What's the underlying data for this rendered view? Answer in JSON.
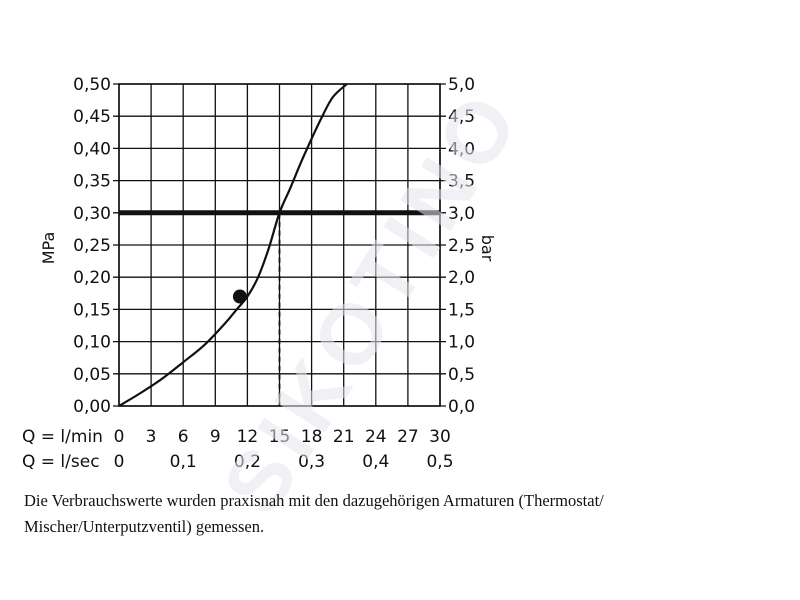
{
  "chart_data": {
    "type": "line",
    "x_lmin": [
      0,
      3,
      6,
      9,
      12,
      15,
      18,
      21,
      24,
      27,
      30
    ],
    "x_lsec_ticks": [
      "0",
      "0,1",
      "0,2",
      "0,3",
      "0,4",
      "0,5"
    ],
    "x_lsec_values": [
      0,
      0.1,
      0.2,
      0.3,
      0.4,
      0.5
    ],
    "xlim": [
      0,
      30
    ],
    "ylim_mpa": [
      0,
      0.5
    ],
    "ylim_bar": [
      0,
      5
    ],
    "y_mpa_ticks": [
      "0,00",
      "0,05",
      "0,10",
      "0,15",
      "0,20",
      "0,25",
      "0,30",
      "0,35",
      "0,40",
      "0,45",
      "0,50"
    ],
    "y_bar_ticks": [
      "0,0",
      "0,5",
      "1,0",
      "1,5",
      "2,0",
      "2,5",
      "3,0",
      "3,5",
      "4,0",
      "4,5",
      "5,0"
    ],
    "ylabel_left": "MPa",
    "ylabel_right": "bar",
    "x_row_labels": [
      "Q = l/min",
      "Q = l/sec"
    ],
    "curve": {
      "x": [
        0,
        2,
        4,
        6,
        8,
        10,
        11,
        12,
        13,
        14,
        15,
        16,
        17,
        18,
        19,
        20,
        21.3
      ],
      "y": [
        0,
        0.02,
        0.042,
        0.068,
        0.095,
        0.13,
        0.15,
        0.17,
        0.2,
        0.245,
        0.3,
        0.338,
        0.378,
        0.415,
        0.45,
        0.48,
        0.5
      ]
    },
    "reference_pressure": 0.3,
    "reference_flow": 15,
    "marker": {
      "x": 11.3,
      "y": 0.17
    },
    "grid": true
  },
  "caption": "Die Verbrauchswerte wurden praxisnah mit den dazugehörigen Armaturen (Thermostat/ Mischer/Unterputzventil) gemessen.",
  "colors": {
    "ink": "#111111",
    "watermark": "#dfe3ea"
  }
}
